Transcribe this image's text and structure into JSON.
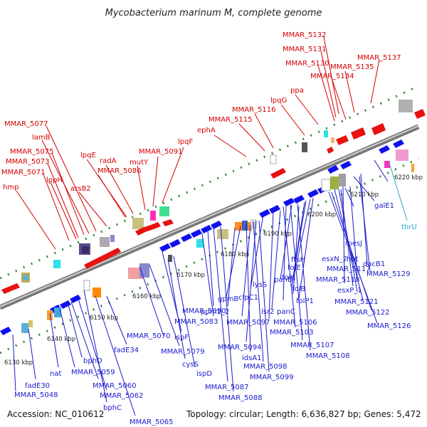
{
  "title": "Mycobacterium marinum M, complete genome",
  "footer": {
    "accession": "Accession: NC_010612",
    "topology": "Topology: circular; Length: 6,636,827 bp; Genes: 5,472"
  },
  "colors": {
    "forward": "#ff0000",
    "reverse": "#0000ff",
    "backbone": "#888888",
    "tick_dot": "#2a8a2a"
  },
  "kbp_ticks": [
    "6130 kbp",
    "6140 kbp",
    "6150 kbp",
    "6160 kbp",
    "6170 kbp",
    "6180 kbp",
    "6190 kbp",
    "6200 kbp",
    "6210 kbp",
    "6220 kbp"
  ],
  "forward_genes": [
    "MMAR_5132",
    "MMAR_5131",
    "MMAR_5130",
    "MMAR_5137",
    "MMAR_5135",
    "MMAR_5134",
    "ppa",
    "lpqG",
    "MMAR_5116",
    "MMAR_5115",
    "ephA",
    "lpqF",
    "MMAR_5091",
    "mutY",
    "radA",
    "lpqE",
    "MMAR_5086",
    "MMAR_5077",
    "lamB",
    "MMAR_5075",
    "MMAR_5073",
    "lppH",
    "MMAR_5071",
    "arsB2",
    "hmp"
  ],
  "reverse_genes": [
    "thrU",
    "galE1",
    "mesJ",
    "hpt",
    "dacB1",
    "MMAR_5129",
    "esxN_2",
    "MMAR_5117",
    "MMAR_5118",
    "esxP_1",
    "MMAR_5121",
    "MMAR_5122",
    "MMAR_5126",
    "ftsH",
    "folE",
    "folK",
    "folB",
    "folP1",
    "lysS",
    "panD",
    "lsr2",
    "panC",
    "clpC1",
    "MMAR_5106",
    "MMAR_5103",
    "MMAR_5107",
    "MMAR_5108",
    "gpmB",
    "ppm1_2",
    "MMAR_5097",
    "MMAR_5094",
    "idsA1",
    "MMAR_5098",
    "MMAR_5099",
    "MMAR_5090",
    "MMAR_5083",
    "MMAR_5087",
    "MMAR_5088",
    "ispF",
    "MMAR_5079",
    "cysS",
    "ispD",
    "MMAR_5070",
    "fadE34",
    "bphD",
    "MMAR_5059",
    "MMAR_5060",
    "MMAR_5062",
    "bphC",
    "MMAR_5065",
    "nat",
    "fadE30",
    "MMAR_5048"
  ]
}
